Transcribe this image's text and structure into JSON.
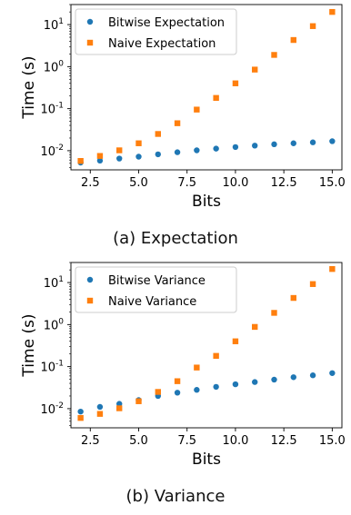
{
  "colors": {
    "bitwise": "#1f77b4",
    "naive": "#ff7f0e"
  },
  "chart_data": [
    {
      "type": "scatter",
      "caption": "(a) Expectation",
      "xlabel": "Bits",
      "ylabel": "Time (s)",
      "xlim": [
        1.5,
        15.5
      ],
      "ylim": [
        0.0035,
        30
      ],
      "yscale": "log",
      "x_ticks": [
        2.5,
        5.0,
        7.5,
        10.0,
        12.5,
        15.0
      ],
      "x_tick_labels": [
        "2.5",
        "5.0",
        "7.5",
        "10.0",
        "12.5",
        "15.0"
      ],
      "y_ticks": [
        0.01,
        0.1,
        1,
        10
      ],
      "y_tick_exponents": [
        "-2",
        "-1",
        "0",
        "1"
      ],
      "legend_position": "top-left",
      "grid": false,
      "series": [
        {
          "name": "Bitwise Expectation",
          "marker": "circle",
          "x": [
            2,
            3,
            4,
            5,
            6,
            7,
            8,
            9,
            10,
            11,
            12,
            13,
            14,
            15
          ],
          "values": [
            0.0052,
            0.0058,
            0.0065,
            0.0072,
            0.0082,
            0.0092,
            0.0102,
            0.0112,
            0.0122,
            0.0132,
            0.0142,
            0.015,
            0.0158,
            0.0168
          ]
        },
        {
          "name": "Naive Expectation",
          "marker": "square",
          "x": [
            2,
            3,
            4,
            5,
            6,
            7,
            8,
            9,
            10,
            11,
            12,
            13,
            14,
            15
          ],
          "values": [
            0.0057,
            0.0075,
            0.0102,
            0.015,
            0.025,
            0.045,
            0.095,
            0.18,
            0.4,
            0.85,
            1.9,
            4.3,
            9.2,
            20
          ]
        }
      ]
    },
    {
      "type": "scatter",
      "caption": "(b) Variance",
      "xlabel": "Bits",
      "ylabel": "Time (s)",
      "xlim": [
        1.5,
        15.5
      ],
      "ylim": [
        0.0035,
        30
      ],
      "yscale": "log",
      "x_ticks": [
        2.5,
        5.0,
        7.5,
        10.0,
        12.5,
        15.0
      ],
      "x_tick_labels": [
        "2.5",
        "5.0",
        "7.5",
        "10.0",
        "12.5",
        "15.0"
      ],
      "y_ticks": [
        0.01,
        0.1,
        1,
        10
      ],
      "y_tick_exponents": [
        "-2",
        "-1",
        "0",
        "1"
      ],
      "legend_position": "top-left",
      "grid": false,
      "series": [
        {
          "name": "Bitwise Variance",
          "marker": "circle",
          "x": [
            2,
            3,
            4,
            5,
            6,
            7,
            8,
            9,
            10,
            11,
            12,
            13,
            14,
            15
          ],
          "values": [
            0.0085,
            0.011,
            0.013,
            0.016,
            0.02,
            0.024,
            0.028,
            0.033,
            0.038,
            0.043,
            0.049,
            0.056,
            0.062,
            0.07
          ]
        },
        {
          "name": "Naive Variance",
          "marker": "square",
          "x": [
            2,
            3,
            4,
            5,
            6,
            7,
            8,
            9,
            10,
            11,
            12,
            13,
            14,
            15
          ],
          "values": [
            0.006,
            0.0075,
            0.0102,
            0.015,
            0.025,
            0.045,
            0.095,
            0.18,
            0.4,
            0.88,
            1.9,
            4.3,
            9.2,
            21
          ]
        }
      ]
    }
  ]
}
